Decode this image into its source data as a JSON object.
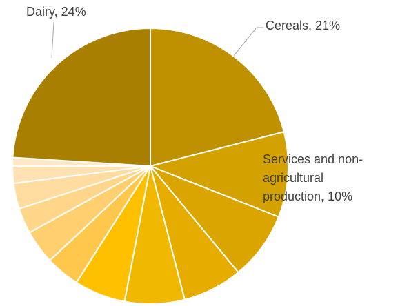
{
  "chart_data": {
    "type": "pie",
    "values": [
      21,
      10,
      8,
      7,
      7,
      6,
      4,
      4,
      3,
      3,
      2,
      1,
      24
    ],
    "value_labels": [
      "Cereals, 21%",
      "Services and non-agricultural production, 10%",
      null,
      null,
      null,
      null,
      null,
      null,
      null,
      null,
      null,
      null,
      "Dairy, 24%"
    ],
    "colors": [
      "#bf9000",
      "#d4a200",
      "#dba500",
      "#e6ad00",
      "#f0b800",
      "#ffc000",
      "#ffc84d",
      "#ffcf70",
      "#ffd68a",
      "#ffdca0",
      "#ffe2b4",
      "#ffe8c8",
      "#a97f00"
    ]
  }
}
